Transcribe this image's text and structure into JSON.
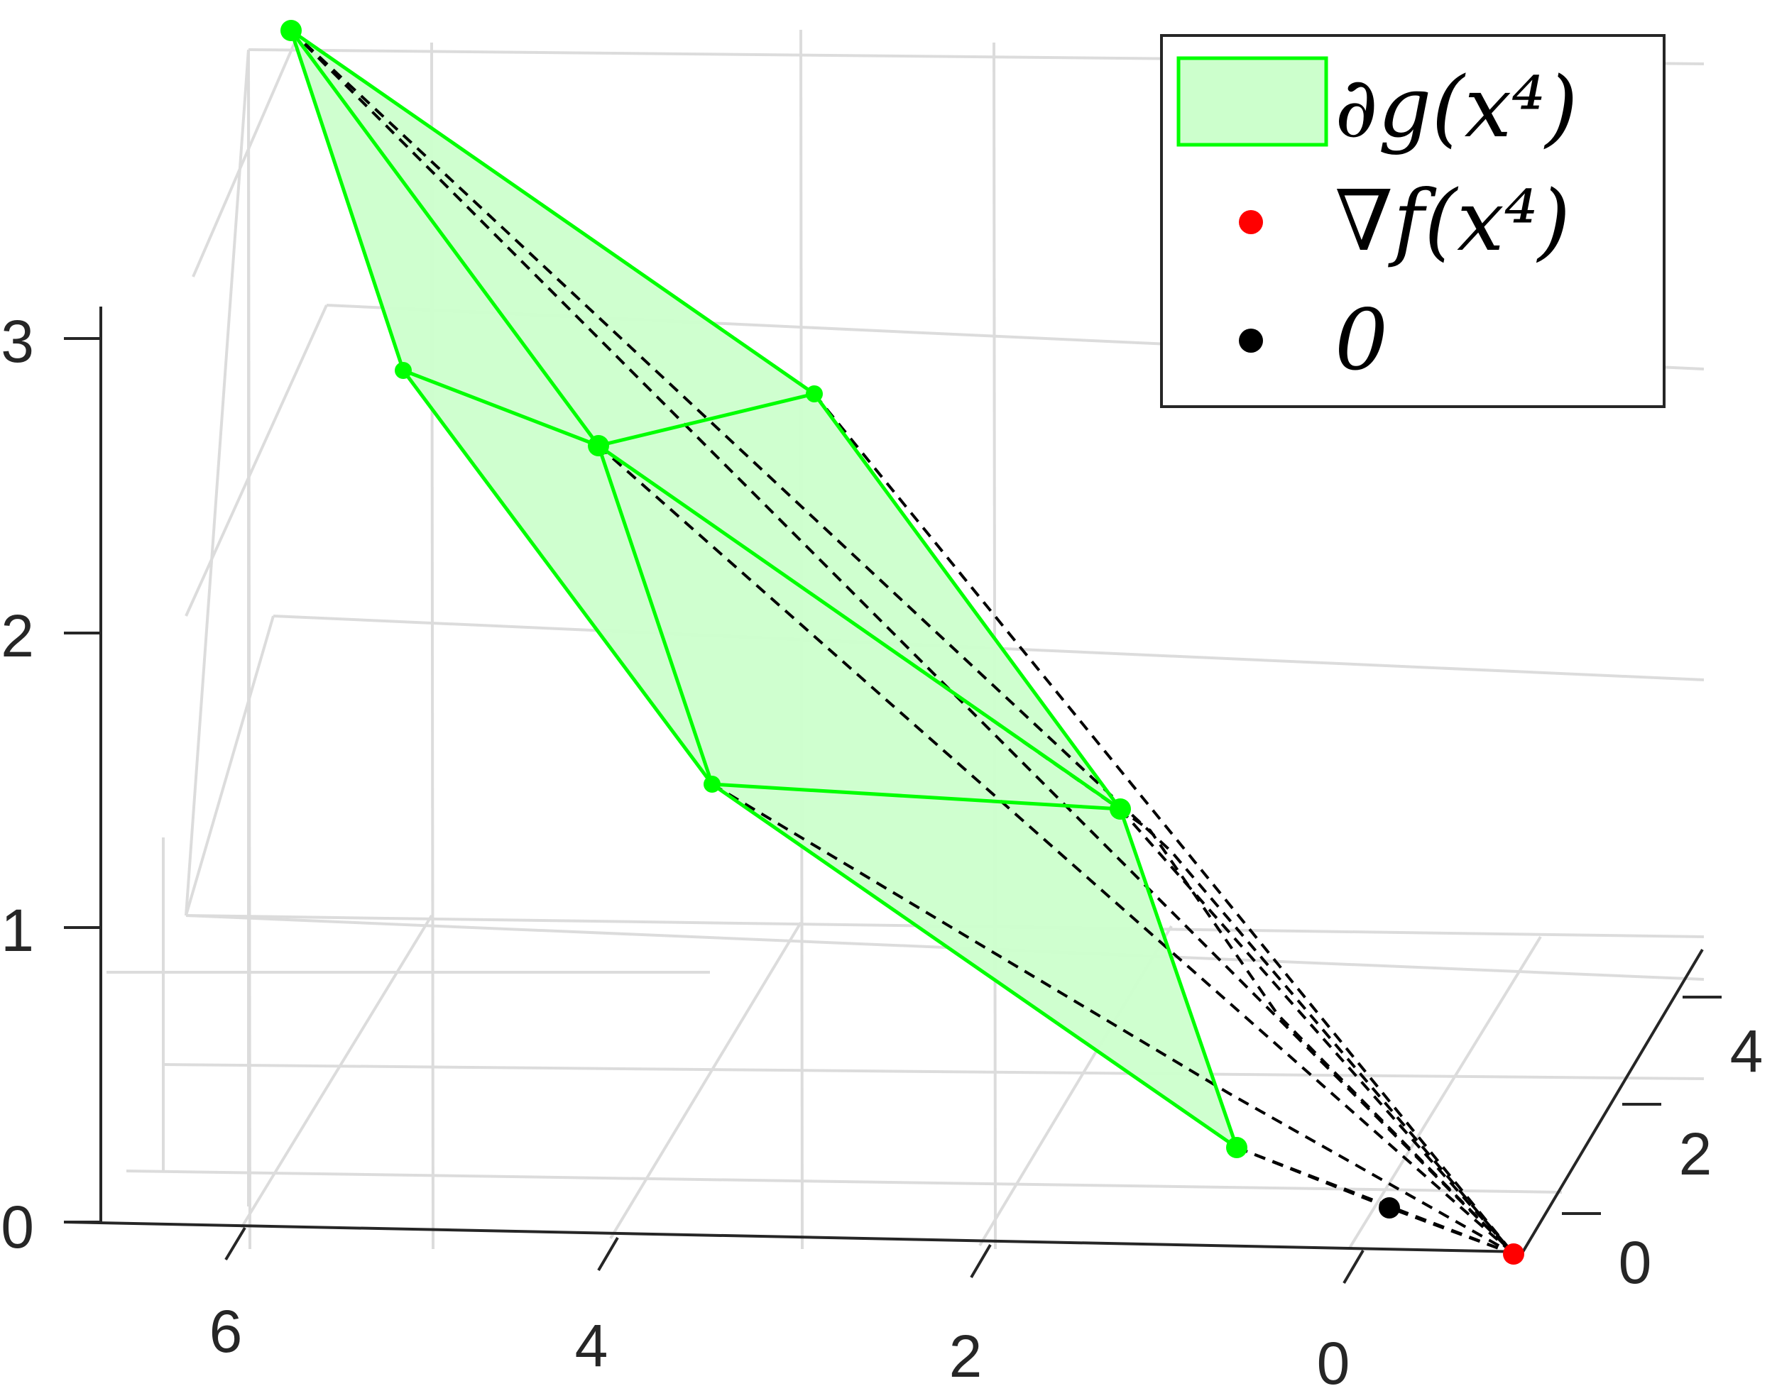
{
  "chart_data": {
    "type": "3d-polytope",
    "title": "",
    "x_ticks": [
      "6",
      "4",
      "2",
      "0"
    ],
    "y_ticks": [
      "0",
      "2",
      "4"
    ],
    "z_ticks": [
      "0",
      "1",
      "2",
      "3"
    ],
    "x_tick_values": [
      6,
      4,
      2,
      0
    ],
    "y_tick_values": [
      0,
      2,
      4
    ],
    "z_tick_values": [
      0,
      1,
      2,
      3
    ],
    "grid": true,
    "legend_placement": "top-right",
    "legend": [
      {
        "label": "∂g(x⁴)",
        "kind": "patch",
        "color": "#00ff00",
        "fill": "#ccffcc"
      },
      {
        "label": "∇f(x⁴)",
        "kind": "point",
        "color": "#ff0000"
      },
      {
        "label": "0",
        "kind": "point",
        "color": "#000000"
      }
    ],
    "polytope_vertex_color": "#00ff00",
    "polytope_fill": "#ccffcc",
    "dashed_line_color": "#000000",
    "grad_f_color": "#ff0000",
    "origin_color": "#000000"
  }
}
